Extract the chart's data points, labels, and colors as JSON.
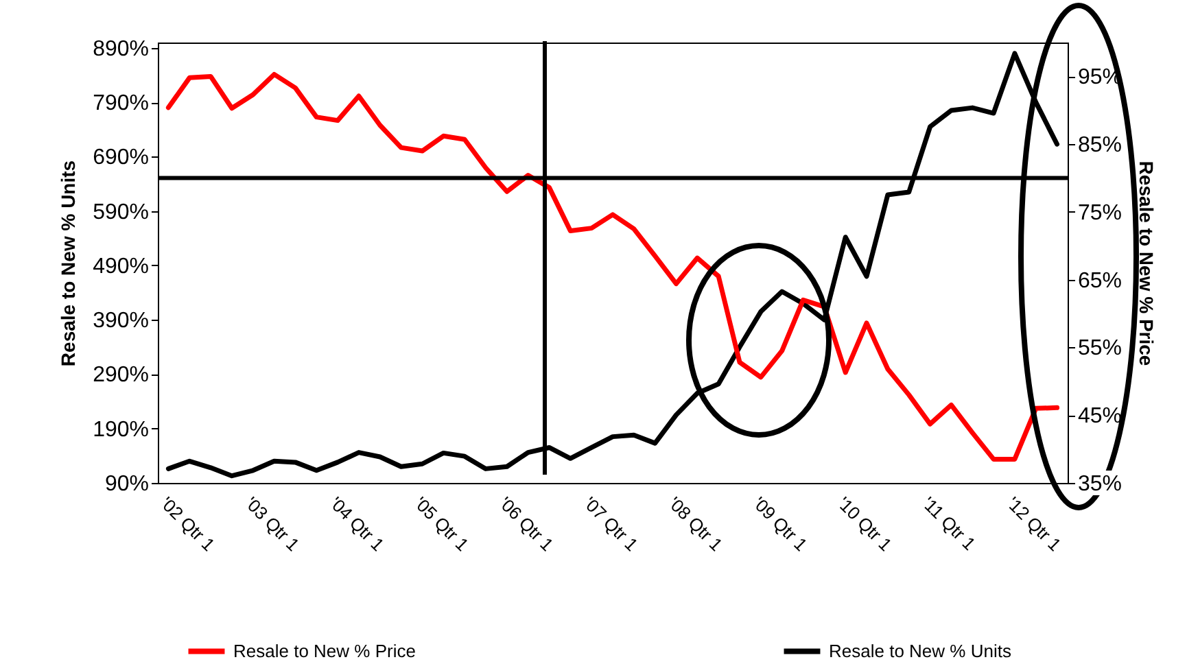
{
  "chart_data": {
    "type": "line",
    "categories": [
      "'02 Qtr 1",
      null,
      null,
      null,
      "'03 Qtr 1",
      null,
      null,
      null,
      "'04 Qtr 1",
      null,
      null,
      null,
      "'05 Qtr 1",
      null,
      null,
      null,
      "'06 Qtr 1",
      null,
      null,
      null,
      "'07 Qtr 1",
      null,
      null,
      null,
      "'08 Qtr 1",
      null,
      null,
      null,
      "'09 Qtr 1",
      null,
      null,
      null,
      "'10 Qtr 1",
      null,
      null,
      null,
      "'11 Qtr 1",
      null,
      null,
      null,
      "'12 Qtr 1",
      null,
      null
    ],
    "series": [
      {
        "name": "Resale to New % Price",
        "color": "#ff0000",
        "axis": "y2",
        "values": [
          90.4,
          94.8,
          95.0,
          90.3,
          92.3,
          95.3,
          93.3,
          89.0,
          88.5,
          92.1,
          87.8,
          84.5,
          84.0,
          86.2,
          85.7,
          81.5,
          78.0,
          80.4,
          78.6,
          72.2,
          72.6,
          74.6,
          72.5,
          68.5,
          64.4,
          68.2,
          65.5,
          52.8,
          50.6,
          54.5,
          62.0,
          61.0,
          51.3,
          58.6,
          51.8,
          48.0,
          43.7,
          46.5,
          42.4,
          38.5,
          38.5,
          46.0,
          46.1
        ]
      },
      {
        "name": "Resale to New % Units",
        "color": "#000000",
        "values": [
          116,
          130,
          118,
          103,
          113,
          130,
          128,
          113,
          128,
          146,
          138,
          120,
          125,
          145,
          139,
          116,
          120,
          146,
          155,
          135,
          155,
          175,
          178,
          163,
          215,
          255,
          272,
          340,
          405,
          442,
          420,
          390,
          542,
          470,
          620,
          625,
          745,
          775,
          780,
          770,
          880,
          790,
          713
        ]
      }
    ],
    "ylabel": "Resale to New % Units",
    "y2label": "Resale to New % Price",
    "ylim": [
      90,
      900
    ],
    "yticks": [
      {
        "value": 90,
        "label": "90%"
      },
      {
        "value": 190,
        "label": "190%"
      },
      {
        "value": 290,
        "label": "290%"
      },
      {
        "value": 390,
        "label": "390%"
      },
      {
        "value": 490,
        "label": "490%"
      },
      {
        "value": 590,
        "label": "590%"
      },
      {
        "value": 690,
        "label": "690%"
      },
      {
        "value": 790,
        "label": "790%"
      },
      {
        "value": 890,
        "label": "890%"
      }
    ],
    "y2lim": [
      35,
      100
    ],
    "y2ticks": [
      {
        "value": 35,
        "label": "35%"
      },
      {
        "value": 45,
        "label": "45%"
      },
      {
        "value": 55,
        "label": "55%"
      },
      {
        "value": 65,
        "label": "65%"
      },
      {
        "value": 75,
        "label": "75%"
      },
      {
        "value": 85,
        "label": "85%"
      },
      {
        "value": 95,
        "label": "95%"
      }
    ],
    "ref_lines": [
      {
        "axis": "y2",
        "value": 80,
        "color": "#000000"
      }
    ],
    "legend": "bottom",
    "marker": "none",
    "line_style": "solid"
  }
}
